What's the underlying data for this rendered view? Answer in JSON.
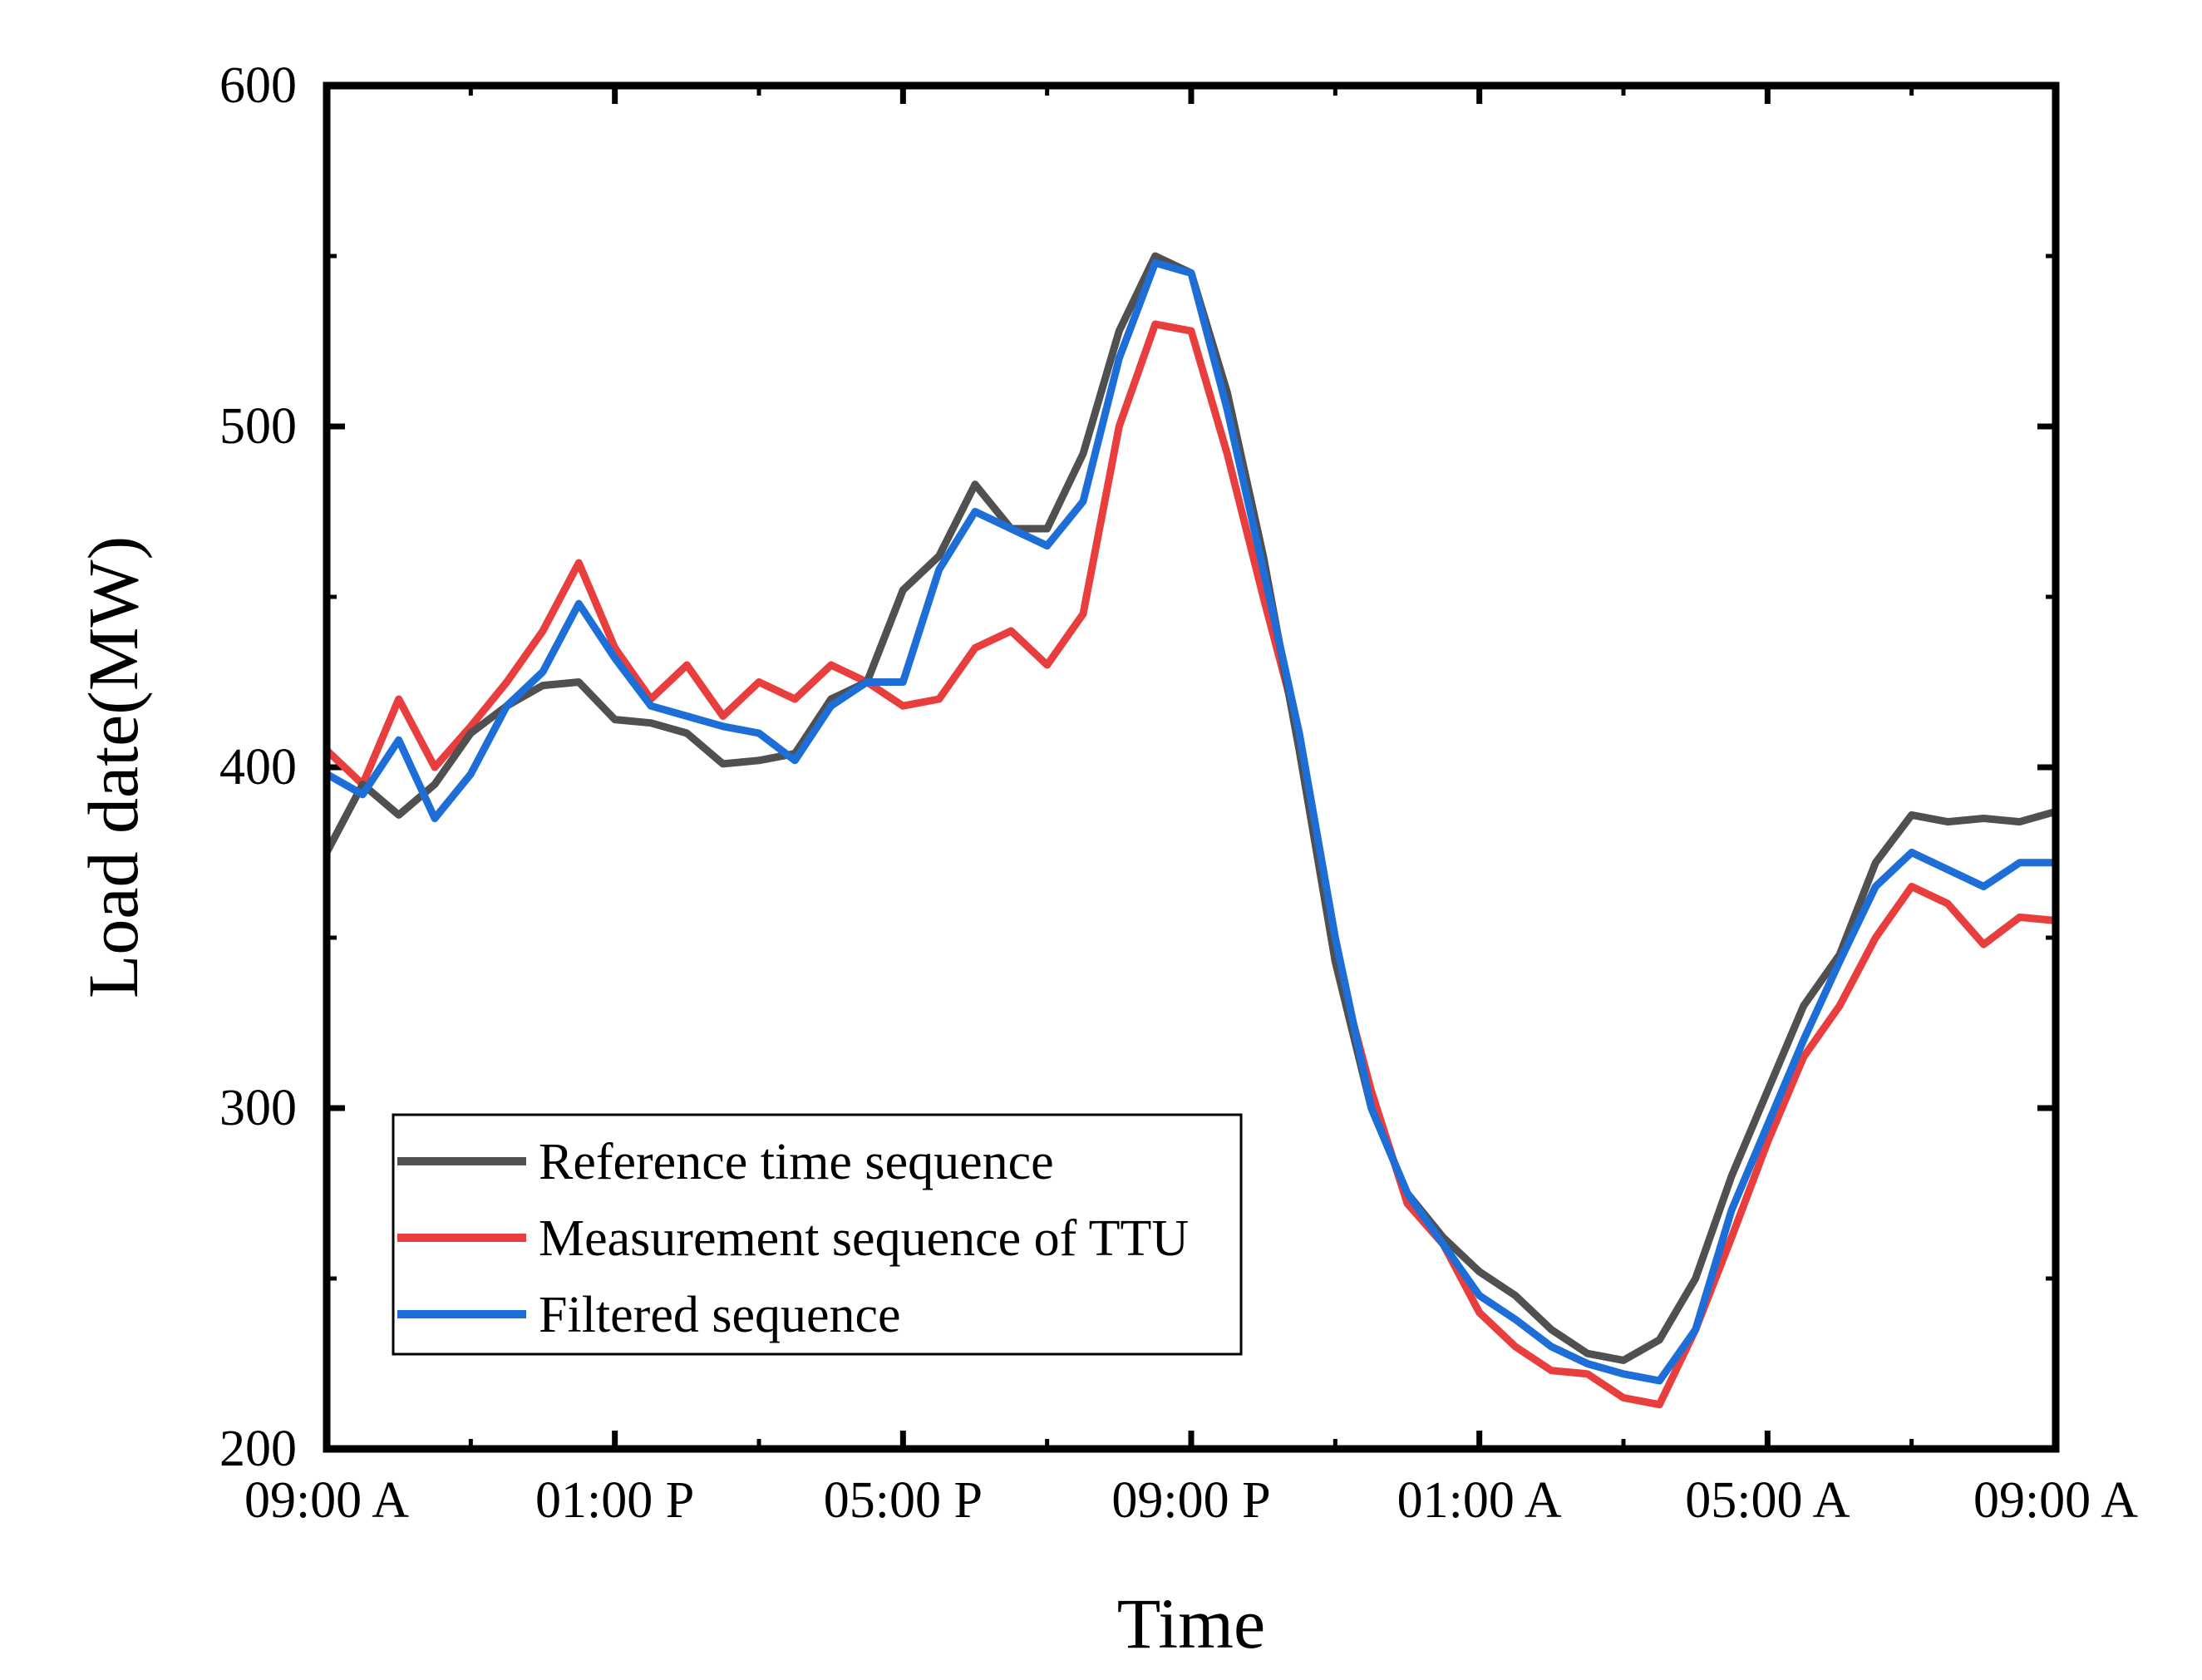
{
  "chart_data": {
    "type": "line",
    "title": "",
    "xlabel": "Time",
    "ylabel": "Load date(MW)",
    "xlim": [
      0,
      24
    ],
    "ylim": [
      200,
      600
    ],
    "yticks": [
      200,
      300,
      400,
      500,
      600
    ],
    "xticks": [
      {
        "x": 0,
        "label": "09:00 A"
      },
      {
        "x": 4,
        "label": "01:00 P"
      },
      {
        "x": 8,
        "label": "05:00 P"
      },
      {
        "x": 12,
        "label": "09:00 P"
      },
      {
        "x": 16,
        "label": "01:00 A"
      },
      {
        "x": 20,
        "label": "05:00 A"
      },
      {
        "x": 24,
        "label": "09:00 A"
      }
    ],
    "x_unit": "hours after 09:00",
    "legend_position": "lower-left",
    "x": [
      0,
      0.5,
      1,
      1.5,
      2,
      2.5,
      3,
      3.5,
      4,
      4.5,
      5,
      5.5,
      6,
      6.5,
      7,
      7.5,
      8,
      8.5,
      9,
      9.5,
      10,
      10.5,
      11,
      11.5,
      12,
      12.5,
      13,
      13.5,
      14,
      14.5,
      15,
      15.5,
      16,
      16.5,
      17,
      17.5,
      18,
      18.5,
      19,
      19.5,
      20,
      20.5,
      21,
      21.5,
      22,
      22.5,
      23,
      23.5,
      24
    ],
    "series": [
      {
        "name": "Reference time sequence",
        "color": "#505050",
        "values": [
          375,
          395,
          386,
          395,
          410,
          418,
          424,
          425,
          414,
          413,
          410,
          401,
          402,
          404,
          420,
          425,
          452,
          462,
          483,
          470,
          470,
          492,
          528,
          550,
          545,
          510,
          462,
          405,
          343,
          300,
          275,
          262,
          252,
          245,
          235,
          228,
          226,
          232,
          250,
          280,
          305,
          330,
          345,
          372,
          386,
          384,
          385,
          384,
          387
        ]
      },
      {
        "name": "Measurement sequence of TTU",
        "color": "#e83e3e",
        "values": [
          405,
          395,
          420,
          400,
          412,
          425,
          440,
          460,
          435,
          420,
          430,
          415,
          425,
          420,
          430,
          425,
          418,
          420,
          435,
          440,
          430,
          445,
          500,
          530,
          528,
          492,
          450,
          410,
          345,
          305,
          272,
          260,
          240,
          230,
          223,
          222,
          215,
          213,
          235,
          262,
          290,
          315,
          330,
          350,
          365,
          360,
          348,
          356,
          355
        ]
      },
      {
        "name": "Filtered sequence",
        "color": "#1e6ed8",
        "values": [
          398,
          392,
          408,
          385,
          398,
          418,
          428,
          448,
          432,
          418,
          415,
          412,
          410,
          402,
          418,
          425,
          425,
          458,
          475,
          470,
          465,
          478,
          520,
          548,
          545,
          505,
          458,
          410,
          350,
          300,
          275,
          260,
          245,
          238,
          230,
          225,
          222,
          220,
          235,
          270,
          295,
          320,
          343,
          365,
          375,
          370,
          365,
          372,
          372
        ]
      }
    ]
  }
}
